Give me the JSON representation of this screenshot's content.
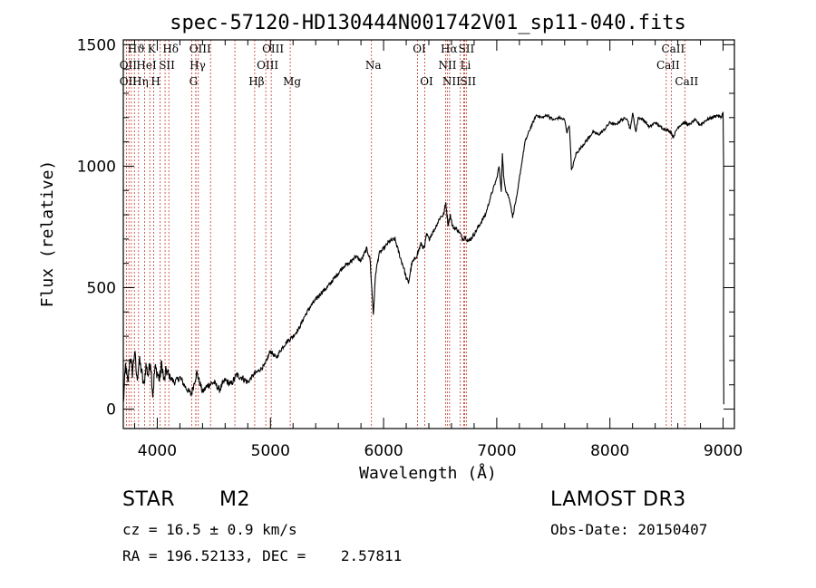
{
  "chart_data": {
    "type": "line",
    "title": "spec-57120-HD130444N001742V01_sp11-040.fits",
    "xlabel": "Wavelength (Å)",
    "ylabel": "Flux (relative)",
    "xlim": [
      3700,
      9100
    ],
    "ylim": [
      -80,
      1520
    ],
    "xticks": [
      4000,
      5000,
      6000,
      7000,
      8000,
      9000
    ],
    "yticks": [
      0,
      500,
      1000,
      1500
    ],
    "grid": false,
    "spectrum": {
      "x": [
        3700,
        3720,
        3740,
        3760,
        3780,
        3800,
        3820,
        3840,
        3860,
        3880,
        3900,
        3920,
        3940,
        3960,
        3980,
        4000,
        4020,
        4040,
        4060,
        4080,
        4100,
        4150,
        4200,
        4250,
        4300,
        4350,
        4400,
        4450,
        4500,
        4550,
        4600,
        4650,
        4700,
        4750,
        4800,
        4850,
        4900,
        4950,
        5000,
        5050,
        5100,
        5150,
        5200,
        5250,
        5300,
        5350,
        5400,
        5450,
        5500,
        5550,
        5600,
        5650,
        5700,
        5750,
        5800,
        5850,
        5880,
        5895,
        5910,
        5930,
        5960,
        6000,
        6050,
        6100,
        6150,
        6180,
        6200,
        6220,
        6250,
        6280,
        6300,
        6330,
        6360,
        6380,
        6400,
        6450,
        6500,
        6530,
        6550,
        6560,
        6570,
        6590,
        6610,
        6650,
        6680,
        6700,
        6720,
        6750,
        6800,
        6850,
        6900,
        6950,
        7000,
        7020,
        7040,
        7050,
        7060,
        7080,
        7100,
        7120,
        7140,
        7160,
        7180,
        7200,
        7250,
        7300,
        7350,
        7400,
        7450,
        7500,
        7550,
        7600,
        7620,
        7640,
        7650,
        7660,
        7700,
        7750,
        7800,
        7850,
        7900,
        7950,
        8000,
        8050,
        8100,
        8150,
        8180,
        8200,
        8230,
        8250,
        8300,
        8350,
        8400,
        8450,
        8500,
        8540,
        8560,
        8600,
        8650,
        8700,
        8750,
        8800,
        8850,
        8900,
        8950,
        8980,
        9000,
        9005
      ],
      "y": [
        20,
        180,
        100,
        220,
        150,
        240,
        120,
        200,
        160,
        90,
        180,
        140,
        200,
        60,
        170,
        150,
        120,
        190,
        110,
        160,
        140,
        110,
        130,
        90,
        60,
        150,
        70,
        100,
        110,
        80,
        120,
        100,
        140,
        130,
        110,
        140,
        160,
        180,
        240,
        210,
        250,
        280,
        300,
        330,
        380,
        420,
        450,
        480,
        500,
        530,
        560,
        590,
        600,
        630,
        610,
        660,
        620,
        500,
        390,
        560,
        640,
        660,
        690,
        700,
        620,
        580,
        540,
        520,
        600,
        620,
        640,
        680,
        660,
        720,
        700,
        740,
        790,
        800,
        850,
        800,
        760,
        800,
        750,
        740,
        720,
        700,
        710,
        690,
        720,
        760,
        800,
        880,
        950,
        1000,
        900,
        1050,
        960,
        900,
        880,
        850,
        790,
        840,
        880,
        950,
        1100,
        1160,
        1210,
        1200,
        1210,
        1190,
        1200,
        1190,
        1140,
        1170,
        1100,
        980,
        1050,
        1080,
        1110,
        1140,
        1130,
        1150,
        1180,
        1170,
        1190,
        1200,
        1150,
        1220,
        1140,
        1200,
        1190,
        1160,
        1180,
        1160,
        1150,
        1140,
        1120,
        1160,
        1180,
        1170,
        1190,
        1170,
        1190,
        1200,
        1210,
        1200,
        1220,
        1000
      ]
    },
    "spectral_lines": [
      {
        "label": "Hϑ",
        "x": 3798,
        "row": 1
      },
      {
        "label": "OII",
        "x": 3727,
        "row": 2
      },
      {
        "label": "OII",
        "x": 3727,
        "row": 3
      },
      {
        "label": "Hη",
        "x": 3835,
        "row": 3
      },
      {
        "label": "K",
        "x": 3934,
        "row": 1
      },
      {
        "label": "H",
        "x": 3969,
        "row": 3
      },
      {
        "label": "HeI",
        "x": 3889,
        "row": 2
      },
      {
        "label": "SII",
        "x": 4069,
        "row": 2
      },
      {
        "label": "Hδ",
        "x": 4102,
        "row": 1
      },
      {
        "label": "OIII",
        "x": 4363,
        "row": 1
      },
      {
        "label": "Hγ",
        "x": 4341,
        "row": 2
      },
      {
        "label": "G",
        "x": 4304,
        "row": 3
      },
      {
        "label": "Hβ",
        "x": 4861,
        "row": 3
      },
      {
        "label": "OIII",
        "x": 5007,
        "row": 1
      },
      {
        "label": "OIII",
        "x": 4959,
        "row": 2
      },
      {
        "label": "Mg",
        "x": 5175,
        "row": 3
      },
      {
        "label": "Na",
        "x": 5893,
        "row": 2
      },
      {
        "label": "OI",
        "x": 6300,
        "row": 1
      },
      {
        "label": "OI",
        "x": 6364,
        "row": 3
      },
      {
        "label": "Hα",
        "x": 6563,
        "row": 1
      },
      {
        "label": "SII",
        "x": 6716,
        "row": 1
      },
      {
        "label": "NII",
        "x": 6548,
        "row": 2
      },
      {
        "label": "Li",
        "x": 6708,
        "row": 2
      },
      {
        "label": "NII",
        "x": 6583,
        "row": 3
      },
      {
        "label": "SII",
        "x": 6731,
        "row": 3
      },
      {
        "label": "CaII",
        "x": 8542,
        "row": 1
      },
      {
        "label": "CaII",
        "x": 8498,
        "row": 2
      },
      {
        "label": "CaII",
        "x": 8662,
        "row": 3
      }
    ],
    "extra_lines": [
      3750,
      3771,
      3889,
      3934,
      4026,
      4340,
      4471,
      4686,
      4861,
      5007,
      6548,
      6583,
      6678,
      6716,
      6731,
      8498,
      8542,
      8662
    ]
  },
  "info": {
    "object_class": "STAR",
    "subclass": "M2",
    "survey": "LAMOST DR3",
    "cz": "cz = 16.5 ± 0.9 km/s",
    "obs_date": "Obs-Date: 20150407",
    "coords": "RA = 196.52133, DEC =    2.57811"
  },
  "colors": {
    "line": "#000000",
    "spectral_line": "#c0392b"
  }
}
